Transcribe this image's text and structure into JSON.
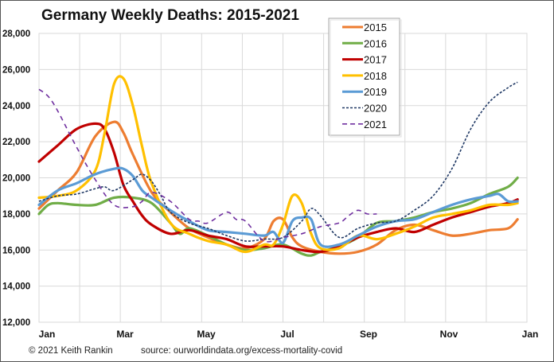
{
  "chart_data": {
    "type": "line",
    "title": "Germany Weekly Deaths: 2015-2021",
    "xlabel": "",
    "ylabel": "",
    "ylim": [
      12000,
      28000
    ],
    "xlim": [
      1,
      53
    ],
    "yticks": [
      12000,
      14000,
      16000,
      18000,
      20000,
      22000,
      24000,
      26000,
      28000
    ],
    "ytick_labels": [
      "12,000",
      "14,000",
      "16,000",
      "18,000",
      "20,000",
      "22,000",
      "24,000",
      "26,000",
      "28,000"
    ],
    "xtick_labels": [
      "Jan",
      "Mar",
      "May",
      "Jul",
      "Sep",
      "Nov",
      "Jan"
    ],
    "grid": true,
    "legend_position": "top-center",
    "series": [
      {
        "name": "2015",
        "color": "#ED7D31",
        "style": "solid",
        "x": [
          1,
          3,
          5,
          7,
          9,
          10,
          11,
          13,
          15,
          17,
          19,
          21,
          23,
          25,
          26,
          27,
          28,
          29,
          31,
          33,
          35,
          37,
          39,
          41,
          43,
          45,
          47,
          49,
          51,
          52
        ],
        "values": [
          18300,
          19300,
          20300,
          22300,
          23100,
          22500,
          21300,
          19200,
          18100,
          17200,
          16700,
          16300,
          16100,
          16600,
          17600,
          17700,
          16700,
          16200,
          15900,
          15800,
          15900,
          16300,
          17100,
          17400,
          17100,
          16800,
          16900,
          17100,
          17200,
          17700
        ]
      },
      {
        "name": "2016",
        "color": "#70AD47",
        "style": "solid",
        "x": [
          1,
          2,
          3,
          5,
          7,
          9,
          11,
          13,
          15,
          16,
          17,
          19,
          21,
          23,
          25,
          27,
          29,
          30,
          31,
          33,
          35,
          37,
          39,
          41,
          43,
          45,
          47,
          49,
          51,
          52
        ],
        "values": [
          18000,
          18500,
          18600,
          18500,
          18500,
          18900,
          18900,
          18600,
          17500,
          16900,
          17200,
          16800,
          16300,
          16000,
          16100,
          16300,
          15800,
          15700,
          15900,
          16200,
          16700,
          17500,
          17600,
          17800,
          18100,
          18300,
          18600,
          19100,
          19500,
          20000
        ]
      },
      {
        "name": "2017",
        "color": "#C00000",
        "style": "solid",
        "x": [
          1,
          3,
          5,
          7,
          8,
          9,
          10,
          11,
          12,
          13,
          15,
          17,
          19,
          21,
          23,
          25,
          27,
          29,
          31,
          33,
          35,
          37,
          39,
          41,
          43,
          45,
          47,
          49,
          51,
          52
        ],
        "values": [
          20900,
          21800,
          22700,
          23000,
          22700,
          21400,
          19600,
          18700,
          17900,
          17400,
          16900,
          17100,
          16800,
          16600,
          16200,
          16200,
          16200,
          16000,
          15900,
          16200,
          16700,
          17000,
          17200,
          17000,
          17400,
          17800,
          18100,
          18400,
          18600,
          18800
        ]
      },
      {
        "name": "2018",
        "color": "#FFC000",
        "style": "solid",
        "x": [
          1,
          3,
          5,
          7,
          8,
          9,
          10,
          11,
          12,
          13,
          15,
          17,
          19,
          21,
          23,
          25,
          26,
          27,
          28,
          29,
          30,
          31,
          33,
          35,
          37,
          39,
          41,
          43,
          45,
          47,
          49,
          51,
          52
        ],
        "values": [
          18900,
          19000,
          19300,
          20400,
          22500,
          25200,
          25500,
          24000,
          21700,
          19700,
          17500,
          16900,
          16500,
          16300,
          15900,
          16300,
          16300,
          17400,
          19000,
          18600,
          16900,
          16100,
          16100,
          16800,
          16600,
          16900,
          17300,
          17800,
          18000,
          18200,
          18500,
          18500,
          18600
        ]
      },
      {
        "name": "2019",
        "color": "#5B9BD5",
        "style": "solid",
        "x": [
          1,
          3,
          5,
          7,
          9,
          10,
          11,
          12,
          13,
          15,
          17,
          19,
          21,
          23,
          25,
          26,
          27,
          28,
          29,
          30,
          31,
          33,
          35,
          37,
          39,
          41,
          43,
          45,
          47,
          49,
          50,
          51,
          52
        ],
        "values": [
          18500,
          19300,
          19700,
          20200,
          20500,
          20500,
          20100,
          19300,
          18900,
          18200,
          17600,
          17100,
          17000,
          16900,
          16800,
          17000,
          16400,
          17600,
          17800,
          17700,
          16300,
          16300,
          16800,
          17300,
          17600,
          17700,
          18100,
          18500,
          18800,
          19000,
          19100,
          18700,
          18700
        ]
      },
      {
        "name": "2020",
        "color": "#1F3864",
        "style": "dotted",
        "x": [
          1,
          3,
          5,
          7,
          8,
          9,
          11,
          12,
          13,
          14,
          15,
          17,
          19,
          21,
          23,
          25,
          27,
          29,
          30,
          31,
          33,
          35,
          37,
          39,
          41,
          43,
          45,
          47,
          49,
          51,
          52
        ],
        "values": [
          18700,
          19000,
          19100,
          19400,
          19500,
          19300,
          19900,
          20200,
          19800,
          19000,
          18100,
          17500,
          17200,
          16800,
          16500,
          16600,
          16700,
          17600,
          18300,
          17900,
          16700,
          17200,
          17500,
          17600,
          18200,
          19000,
          20500,
          22700,
          24200,
          25000,
          25300
        ]
      },
      {
        "name": "2021",
        "color": "#7030A0",
        "style": "dashed",
        "x": [
          1,
          2,
          3,
          5,
          7,
          9,
          11,
          12,
          13,
          15,
          17,
          18,
          19,
          21,
          22,
          23,
          25,
          27,
          29,
          31,
          33,
          34,
          35,
          36,
          37
        ],
        "values": [
          24900,
          24500,
          23700,
          21700,
          19900,
          18500,
          18400,
          18700,
          19200,
          18700,
          17700,
          17600,
          17500,
          18100,
          17700,
          17600,
          16500,
          16700,
          16900,
          17300,
          17500,
          17900,
          18200,
          18000,
          18000
        ]
      }
    ]
  },
  "footer": {
    "copyright": "© 2021 Keith Rankin",
    "source": "source:  ourworldindata.org/excess-mortality-covid"
  }
}
